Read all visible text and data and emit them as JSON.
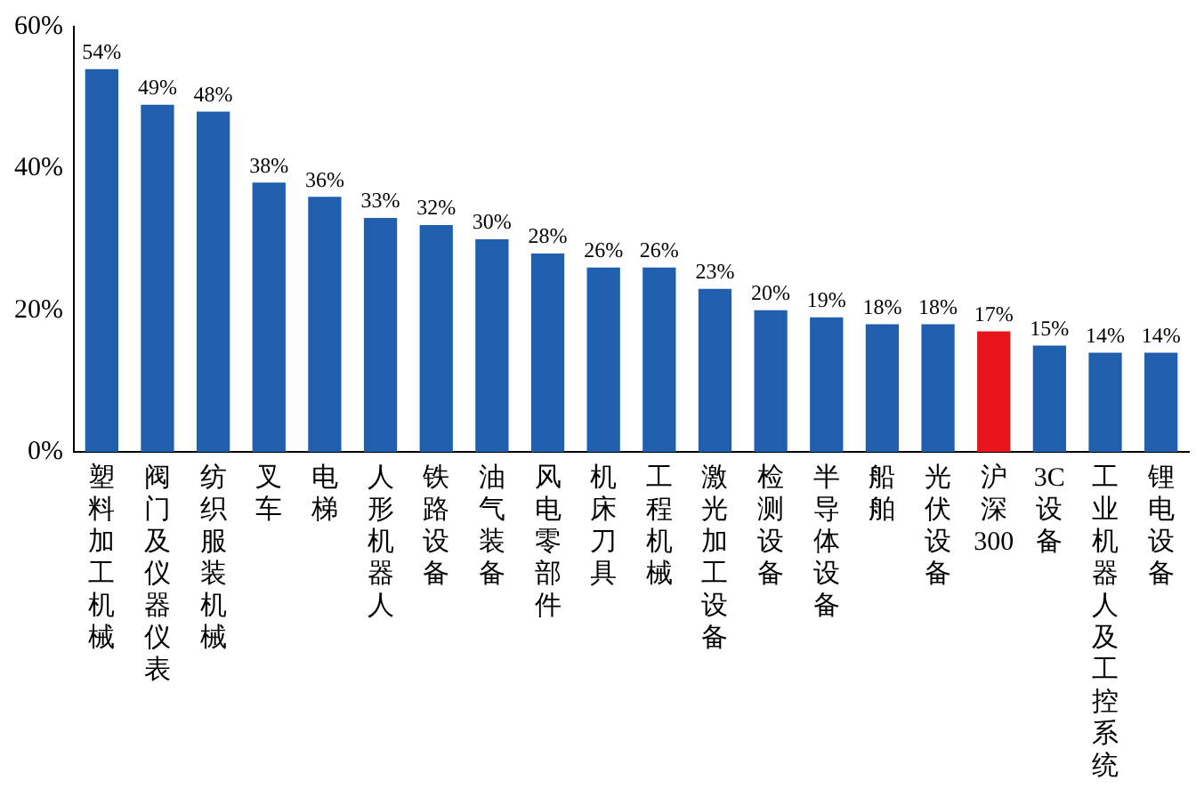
{
  "chart_data": {
    "type": "bar",
    "categories": [
      "塑料加工机械",
      "阀门及仪器仪表",
      "纺织服装机械",
      "叉车",
      "电梯",
      "人形机器人",
      "铁路设备",
      "油气装备",
      "风电零部件",
      "机床刀具",
      "工程机械",
      "激光加工设备",
      "检测设备",
      "半导体设备",
      "船舶",
      "光伏设备",
      "沪深300",
      "3C设备",
      "工业机器人及工控系统",
      "锂电设备"
    ],
    "values": [
      54,
      49,
      48,
      38,
      36,
      33,
      32,
      30,
      28,
      26,
      26,
      23,
      20,
      19,
      18,
      18,
      17,
      15,
      14,
      14
    ],
    "colors": [
      "#1f5fad",
      "#1f5fad",
      "#1f5fad",
      "#1f5fad",
      "#1f5fad",
      "#1f5fad",
      "#1f5fad",
      "#1f5fad",
      "#1f5fad",
      "#1f5fad",
      "#1f5fad",
      "#1f5fad",
      "#1f5fad",
      "#1f5fad",
      "#1f5fad",
      "#1f5fad",
      "#e8141b",
      "#1f5fad",
      "#1f5fad",
      "#1f5fad"
    ],
    "value_labels": [
      "54%",
      "49%",
      "48%",
      "38%",
      "36%",
      "33%",
      "32%",
      "30%",
      "28%",
      "26%",
      "26%",
      "23%",
      "20%",
      "19%",
      "18%",
      "18%",
      "17%",
      "15%",
      "14%",
      "14%"
    ],
    "ylim": [
      0,
      60
    ],
    "yticks": [
      {
        "value": 0,
        "label": "0%"
      },
      {
        "value": 20,
        "label": "20%"
      },
      {
        "value": 40,
        "label": "40%"
      },
      {
        "value": 60,
        "label": "60%"
      }
    ],
    "grid": false,
    "legend": false
  }
}
